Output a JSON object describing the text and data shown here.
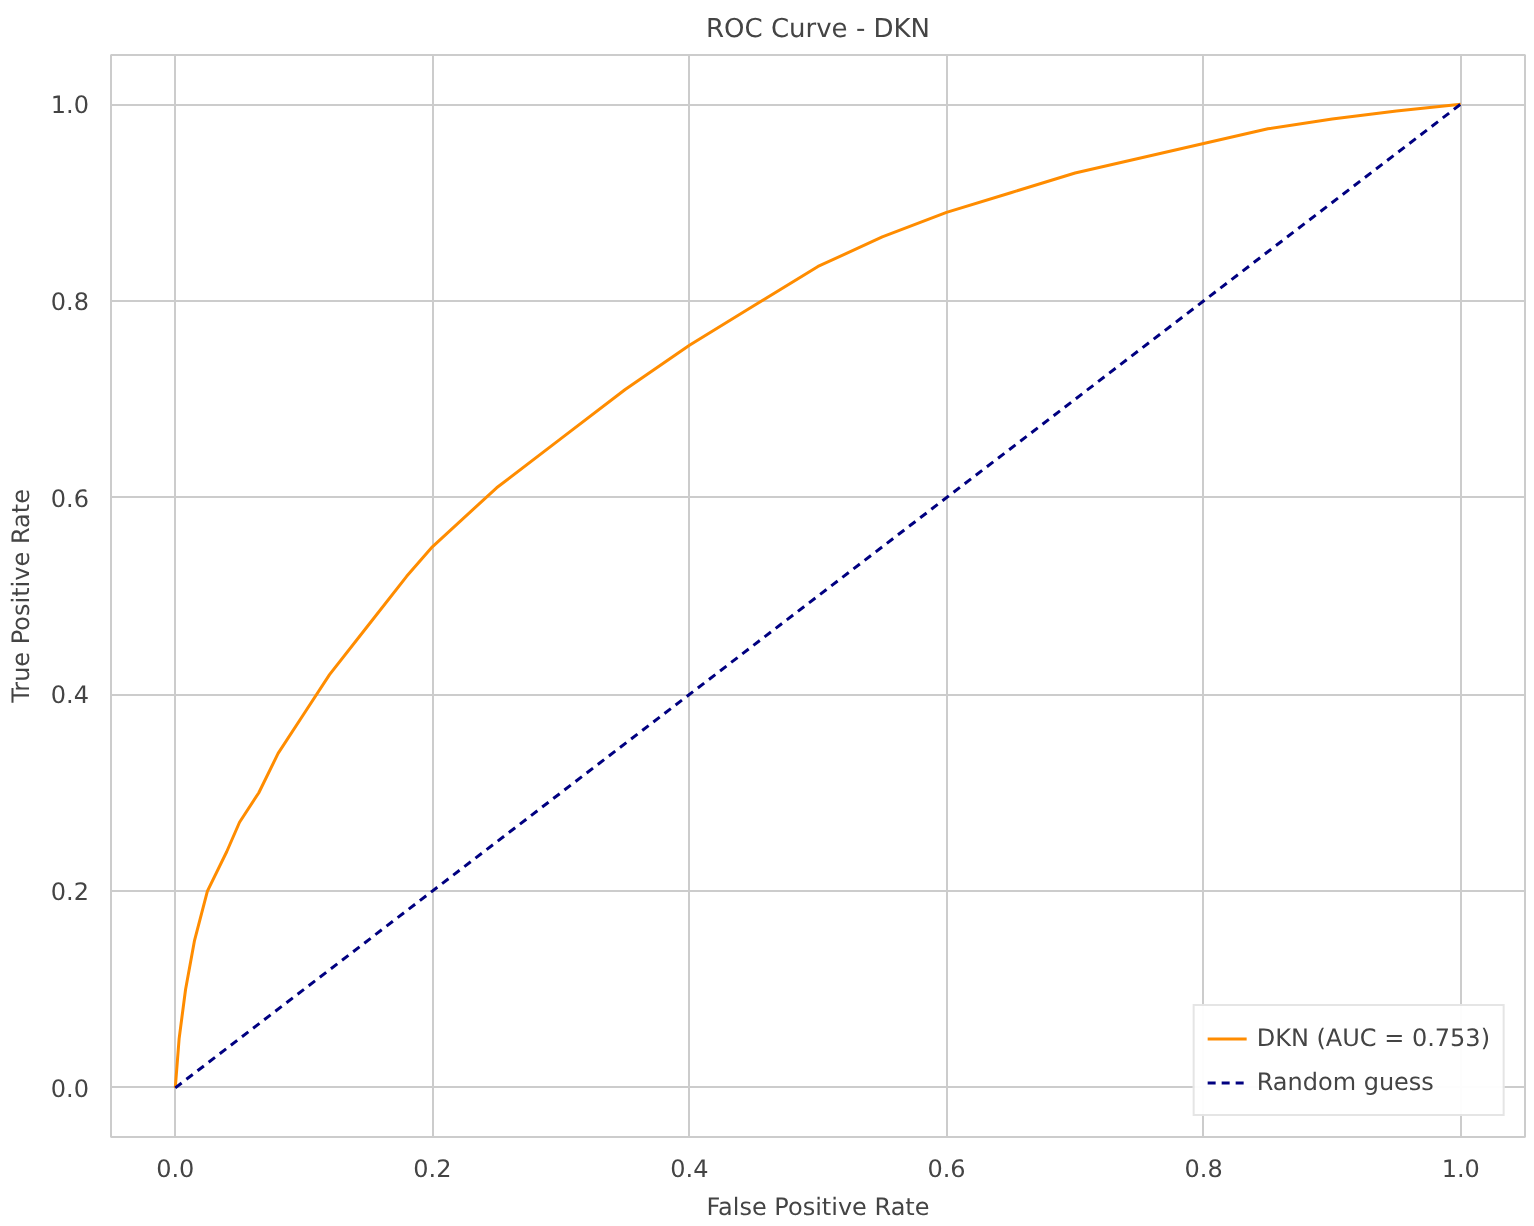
{
  "chart_data": {
    "type": "line",
    "title": "ROC Curve - DKN",
    "xlabel": "False Positive Rate",
    "ylabel": "True Positive Rate",
    "xlim": [
      -0.05,
      1.05
    ],
    "ylim": [
      -0.05,
      1.05
    ],
    "xticks": [
      {
        "value": 0,
        "label": "0.0"
      },
      0.2,
      0.4,
      0.6,
      0.8,
      {
        "value": 1,
        "label": "1.0"
      }
    ],
    "yticks": [
      {
        "value": 0,
        "label": "0.0"
      },
      0.2,
      0.4,
      0.6,
      0.8,
      {
        "value": 1,
        "label": "1.0"
      }
    ],
    "grid": true,
    "legend": "bottom right",
    "marker": "none",
    "series": [
      {
        "name": "DKN (AUC = 0.753)",
        "color": "#ff8c00",
        "line_style": "solid",
        "x": [
          0,
          0.003,
          0.008,
          0.015,
          0.025,
          0.04,
          0.05,
          0.065,
          0.08,
          0.1,
          0.12,
          0.15,
          0.18,
          0.2,
          0.25,
          0.3,
          0.35,
          0.4,
          0.45,
          0.5,
          0.55,
          0.6,
          0.65,
          0.7,
          0.75,
          0.8,
          0.85,
          0.9,
          0.95,
          1.0
        ],
        "values": [
          0,
          0.05,
          0.1,
          0.15,
          0.2,
          0.24,
          0.27,
          0.3,
          0.34,
          0.38,
          0.42,
          0.47,
          0.52,
          0.55,
          0.61,
          0.66,
          0.71,
          0.755,
          0.795,
          0.835,
          0.865,
          0.89,
          0.91,
          0.93,
          0.945,
          0.96,
          0.975,
          0.985,
          0.993,
          1.0
        ]
      },
      {
        "name": "Random guess",
        "color": "#000080",
        "line_style": "dashed",
        "x": [
          0,
          1
        ],
        "values": [
          0,
          1
        ]
      }
    ]
  }
}
